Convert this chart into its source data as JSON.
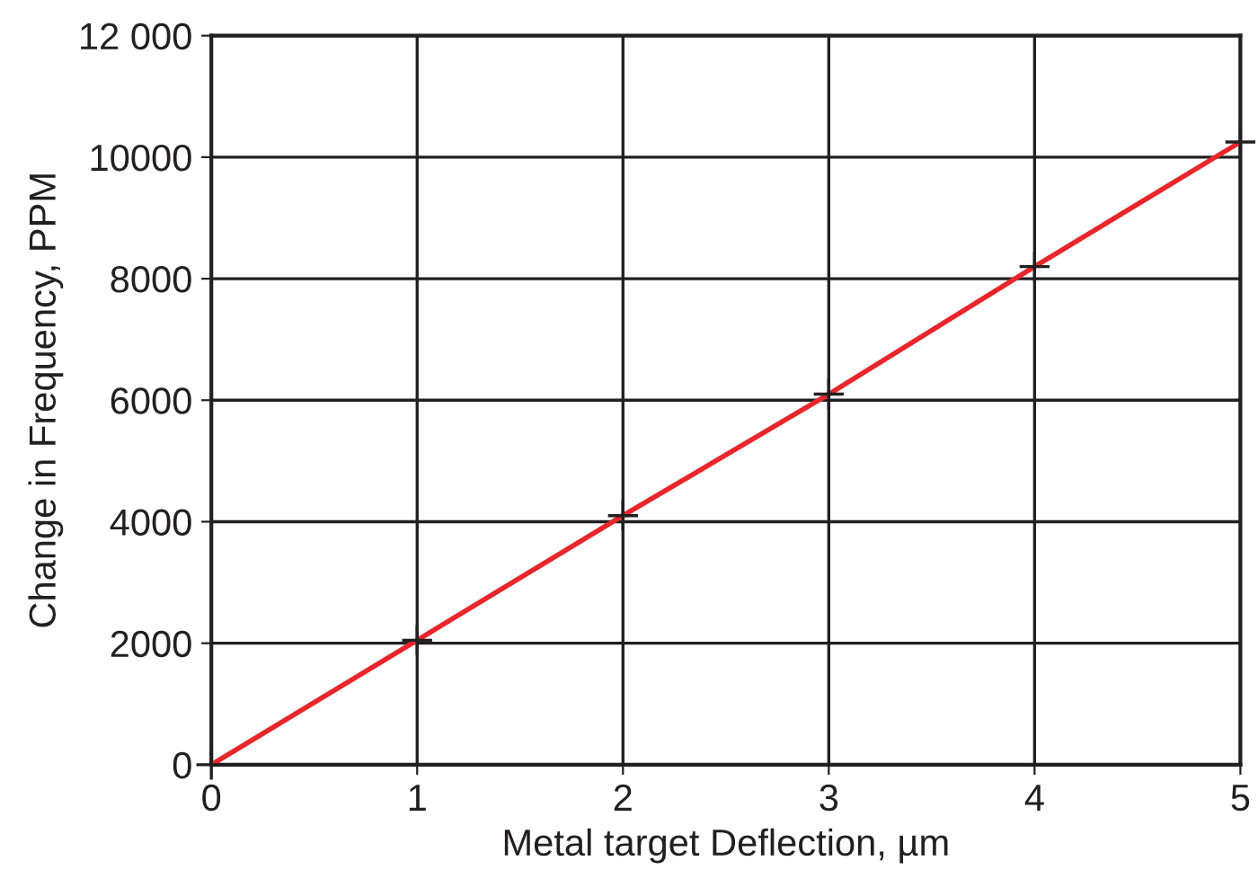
{
  "chart_data": {
    "type": "line",
    "xlabel": "Metal target Deflection, µm",
    "ylabel": "Change in Frequency, PPM",
    "x": [
      0,
      1,
      2,
      3,
      4,
      5
    ],
    "series": [
      {
        "color": "#e8262b",
        "values": [
          0,
          2050,
          4100,
          6100,
          8200,
          10250
        ]
      }
    ],
    "marker": "cross",
    "line_style": "solid",
    "xlim": [
      0,
      5
    ],
    "xticks": [
      0,
      1,
      2,
      3,
      4,
      5
    ],
    "ylim": [
      0,
      12000
    ],
    "yticks": [
      0,
      2000,
      4000,
      6000,
      8000,
      10000,
      {
        "value": 12000,
        "label": "12 000"
      }
    ],
    "grid": true,
    "legend": false
  }
}
